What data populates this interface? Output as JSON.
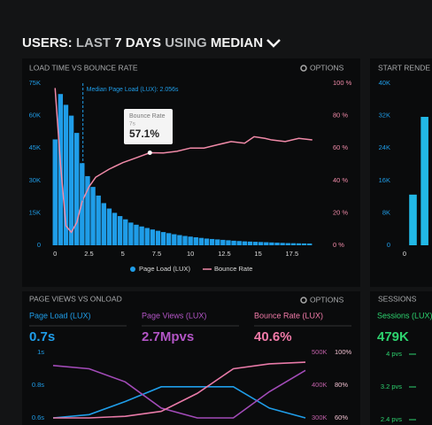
{
  "header": {
    "segments": [
      "USERS:",
      "LAST",
      "7 DAYS",
      "USING",
      "MEDIAN"
    ]
  },
  "chart_data": [
    {
      "type": "bar",
      "title": "LOAD TIME VS BOUNCE RATE",
      "options": "OPTIONS",
      "x": [
        0,
        0.4,
        0.8,
        1.2,
        1.6,
        2,
        2.4,
        2.8,
        3.2,
        3.6,
        4,
        4.4,
        4.8,
        5.2,
        5.6,
        6,
        6.4,
        6.8,
        7.2,
        7.6,
        8,
        8.4,
        8.8,
        9.2,
        9.6,
        10,
        10.4,
        10.8,
        11.2,
        11.6,
        12,
        12.4,
        12.8,
        13.2,
        13.6,
        14,
        14.4,
        14.8,
        15.2,
        15.6,
        16,
        16.4,
        16.8,
        17.2,
        17.6,
        18,
        18.4,
        18.8
      ],
      "series": [
        {
          "name": "Page Load (LUX)",
          "color": "#1f9de8",
          "values": [
            49000,
            70000,
            65000,
            60000,
            52000,
            38000,
            32000,
            27000,
            23000,
            19500,
            17000,
            15000,
            13500,
            12000,
            10500,
            9500,
            8700,
            8000,
            7300,
            6700,
            6100,
            5600,
            5100,
            4700,
            4300,
            4000,
            3700,
            3400,
            3100,
            2900,
            2700,
            2500,
            2300,
            2100,
            1950,
            1800,
            1700,
            1600,
            1500,
            1400,
            1300,
            1200,
            1100,
            1000,
            950,
            900,
            850,
            800
          ]
        },
        {
          "name": "Bounce Rate",
          "type": "line",
          "axis": "y2",
          "color": "#f08aa8",
          "x": [
            0,
            0.4,
            0.8,
            1.2,
            1.6,
            2,
            2.5,
            3,
            4,
            5,
            6,
            7,
            8,
            9,
            10,
            11,
            12,
            13,
            14,
            14.7,
            15.5,
            16,
            17,
            18,
            19
          ],
          "values": [
            97,
            50,
            12,
            8,
            14,
            27,
            36,
            42,
            47,
            51,
            54,
            57.1,
            57,
            58,
            60,
            60,
            62,
            64,
            63,
            67,
            66,
            65,
            64,
            66,
            65
          ]
        }
      ],
      "xlim": [
        -0.8,
        19.8
      ],
      "xticks": [
        0,
        2.5,
        5,
        7.5,
        10,
        12.5,
        15,
        17.5
      ],
      "ylim": [
        0,
        75000
      ],
      "yticks": [
        0,
        {
          "value": 15000,
          "label": "15K"
        },
        {
          "value": 30000,
          "label": "30K"
        },
        {
          "value": 45000,
          "label": "45K"
        },
        {
          "value": 60000,
          "label": "60K"
        },
        {
          "value": 75000,
          "label": "75K"
        }
      ],
      "y2lim": [
        0,
        100
      ],
      "y2ticks": [
        {
          "value": 0,
          "label": "0 %"
        },
        {
          "value": 20,
          "label": "20 %"
        },
        {
          "value": 40,
          "label": "40 %"
        },
        {
          "value": 60,
          "label": "60 %"
        },
        {
          "value": 80,
          "label": "80 %"
        },
        {
          "value": 100,
          "label": "100 %"
        }
      ],
      "annotation": {
        "text": "Median Page Load (LUX): 2.056s",
        "x": 2.056
      },
      "tooltip": {
        "title": "Bounce Rate",
        "x": 7,
        "x_label": "7s",
        "value": 57.1,
        "value_label": "57.1%"
      }
    },
    {
      "type": "bar",
      "title": "START RENDE",
      "x": [
        0.4,
        0.95
      ],
      "values": [
        12500,
        31700
      ],
      "color": "#22b8e6",
      "xlim": [
        -0.5,
        1.3
      ],
      "xticks": [
        0
      ],
      "ylim": [
        0,
        40000
      ],
      "yticks": [
        0,
        {
          "value": 8000,
          "label": "8K"
        },
        {
          "value": 16000,
          "label": "16K"
        },
        {
          "value": 24000,
          "label": "24K"
        },
        {
          "value": 32000,
          "label": "32K"
        },
        {
          "value": 40000,
          "label": "40K"
        }
      ]
    },
    {
      "type": "line",
      "title": "PAGE VIEWS VS ONLOAD",
      "options": "OPTIONS",
      "stats": [
        {
          "label": "Page Load (LUX)",
          "value": "0.7s"
        },
        {
          "label": "Page Views (LUX)",
          "value": "2.7Mpvs"
        },
        {
          "label": "Bounce Rate (LUX)",
          "value": "40.6%"
        }
      ],
      "categories": [
        null,
        null,
        null,
        null,
        null,
        null,
        null,
        null
      ],
      "series": [
        {
          "color": "#1f9de8",
          "values": [
            0.6,
            0.62,
            0.7,
            0.79,
            0.79,
            0.79,
            0.66,
            0.6
          ]
        },
        {
          "color": "#a24bb8",
          "axis": "y2",
          "values": [
            460000,
            450000,
            410000,
            330000,
            300000,
            300000,
            380000,
            445000
          ]
        },
        {
          "color": "#e87aa8",
          "axis": "y3",
          "values": [
            60,
            60,
            61,
            64,
            75,
            90,
            93,
            94
          ]
        }
      ],
      "ylim": [
        0.6,
        1
      ],
      "yticks": [
        {
          "value": 1,
          "label": "1s"
        },
        {
          "value": 0.8,
          "label": "0.8s"
        },
        {
          "value": 0.6,
          "label": "0.6s"
        }
      ],
      "y2lim": [
        300000,
        500000
      ],
      "y2ticks": [
        {
          "value": 500000,
          "label": "500K"
        },
        {
          "value": 400000,
          "label": "400K"
        },
        {
          "value": 300000,
          "label": "300K"
        }
      ],
      "y3lim": [
        60,
        100
      ],
      "y3ticks": [
        {
          "value": 100,
          "label": "100%"
        },
        {
          "value": 80,
          "label": "80%"
        },
        {
          "value": 60,
          "label": "60%"
        }
      ]
    },
    {
      "type": "stat",
      "title": "SESSIONS",
      "stats": [
        {
          "label": "Sessions (LUX)",
          "value": "479K"
        }
      ],
      "ylim": [
        2.4,
        4
      ],
      "yticks": [
        {
          "value": 4,
          "label": "4 pvs"
        },
        {
          "value": 3.2,
          "label": "3.2 pvs"
        },
        {
          "value": 2.4,
          "label": "2.4 pvs"
        }
      ]
    }
  ]
}
